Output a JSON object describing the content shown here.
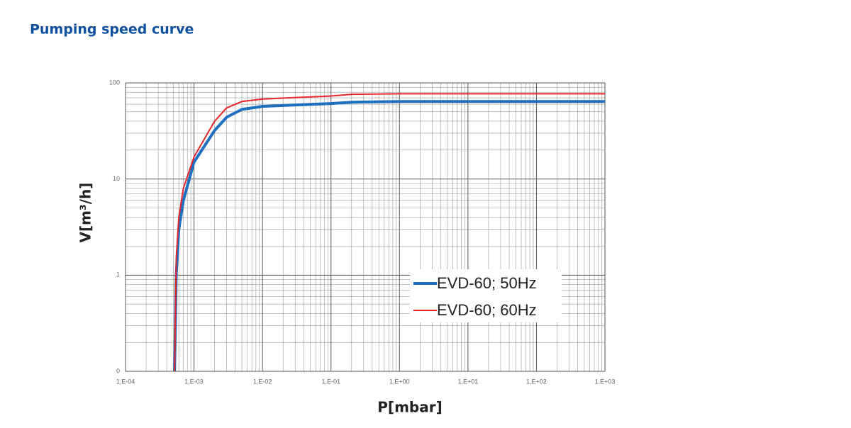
{
  "chart_data": {
    "type": "line",
    "title": "Pumping speed curve",
    "x_label": "P[mbar]",
    "y_label": "V[m³/h]",
    "x_log": true,
    "y_log": true,
    "grid": true,
    "minor_grid": true,
    "legend": "lower right",
    "xlim": [
      0.0001,
      1000
    ],
    "xticks": [
      {
        "value": 0.0001,
        "label": "1,E-04"
      },
      {
        "value": 0.001,
        "label": "1,E-03"
      },
      {
        "value": 0.01,
        "label": "1,E-02"
      },
      {
        "value": 0.1,
        "label": "1,E-01"
      },
      {
        "value": 1,
        "label": "1,E+00"
      },
      {
        "value": 10,
        "label": "1,E+01"
      },
      {
        "value": 100,
        "label": "1,E+02"
      },
      {
        "value": 1000,
        "label": "1,E+03"
      }
    ],
    "ylim": [
      0.1,
      100
    ],
    "yticks": [
      {
        "value": 0.1,
        "label": "0"
      },
      1,
      10,
      100
    ],
    "series": [
      {
        "name": "EVD-60; 50Hz",
        "color": "#1f6fc0",
        "width": 4,
        "x": [
          0.00052,
          0.00055,
          0.0006,
          0.0007,
          0.001,
          0.002,
          0.003,
          0.005,
          0.01,
          0.1,
          0.2,
          1,
          1000
        ],
        "values": [
          0.1,
          1,
          3,
          6,
          15,
          32,
          44,
          53,
          57,
          61,
          63,
          64,
          64
        ]
      },
      {
        "name": "EVD-60; 60Hz",
        "color": "#e8262a",
        "width": 2,
        "x": [
          0.00052,
          0.00055,
          0.0006,
          0.0007,
          0.001,
          0.002,
          0.003,
          0.005,
          0.01,
          0.1,
          0.2,
          1,
          1000
        ],
        "values": [
          0.1,
          1.5,
          4,
          8,
          17,
          40,
          55,
          64,
          68,
          73,
          76,
          77,
          77
        ]
      }
    ]
  }
}
